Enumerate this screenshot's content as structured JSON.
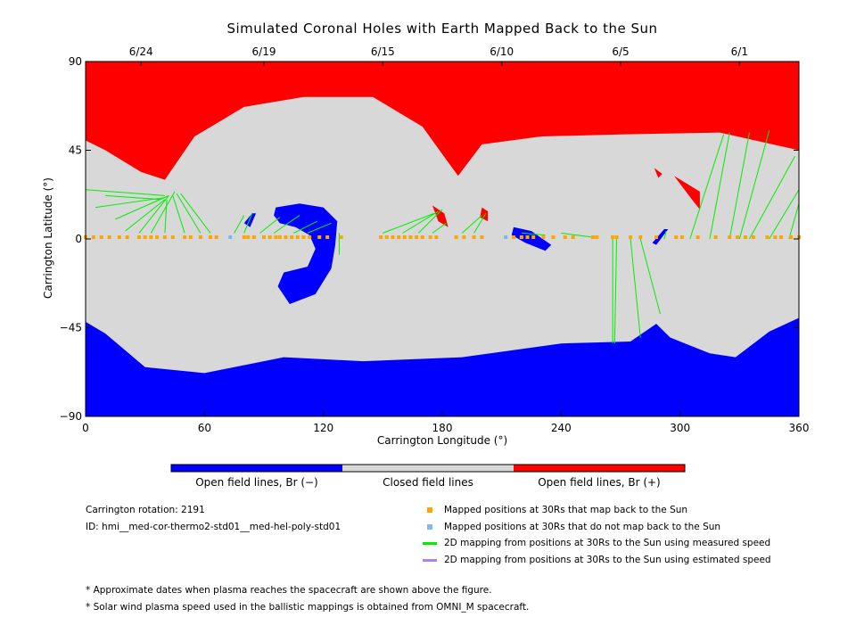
{
  "chart_data": {
    "type": "map",
    "title": "Simulated Coronal Holes with Earth Mapped Back to the Sun",
    "xlabel": "Carrington Longitude (°)",
    "ylabel": "Carrington Latitude (°)",
    "xlim": [
      0,
      360
    ],
    "ylim": [
      -90,
      90
    ],
    "xticks": [
      0,
      60,
      120,
      180,
      240,
      300,
      360
    ],
    "yticks": [
      90,
      45,
      0,
      -45,
      -90
    ],
    "date_ticks": [
      {
        "lon": 28,
        "label": "6/24"
      },
      {
        "lon": 90,
        "label": "6/19"
      },
      {
        "lon": 150,
        "label": "6/15"
      },
      {
        "lon": 210,
        "label": "6/10"
      },
      {
        "lon": 270,
        "label": "6/5"
      },
      {
        "lon": 330,
        "label": "6/1"
      }
    ],
    "colors": {
      "open_negative": "#0000ff",
      "closed": "#d8d8d8",
      "open_positive": "#ff0000",
      "mapped": "#ffa500",
      "not_mapped": "#80b8f0",
      "measured_line": "#00ee00",
      "estimated_line": "#b080f0"
    },
    "regions": [
      {
        "polarity": "positive",
        "points": [
          [
            0,
            90
          ],
          [
            360,
            90
          ],
          [
            360,
            45
          ],
          [
            320,
            54
          ],
          [
            270,
            53
          ],
          [
            230,
            52
          ],
          [
            200,
            48
          ],
          [
            188,
            32
          ],
          [
            180,
            43
          ],
          [
            170,
            57
          ],
          [
            145,
            72
          ],
          [
            110,
            72
          ],
          [
            80,
            67
          ],
          [
            55,
            52
          ],
          [
            40,
            30
          ],
          [
            28,
            34
          ],
          [
            10,
            45
          ],
          [
            0,
            50
          ]
        ]
      },
      {
        "polarity": "negative",
        "points": [
          [
            0,
            -90
          ],
          [
            360,
            -90
          ],
          [
            360,
            -40
          ],
          [
            345,
            -47
          ],
          [
            328,
            -60
          ],
          [
            315,
            -58
          ],
          [
            295,
            -50
          ],
          [
            288,
            -43
          ],
          [
            275,
            -52
          ],
          [
            240,
            -53
          ],
          [
            190,
            -60
          ],
          [
            140,
            -62
          ],
          [
            100,
            -60
          ],
          [
            60,
            -68
          ],
          [
            30,
            -65
          ],
          [
            10,
            -48
          ],
          [
            0,
            -42
          ]
        ]
      },
      {
        "polarity": "negative",
        "points": [
          [
            96,
            16
          ],
          [
            108,
            18
          ],
          [
            120,
            16
          ],
          [
            127,
            9
          ],
          [
            126,
            -3
          ],
          [
            124,
            -15
          ],
          [
            116,
            -28
          ],
          [
            103,
            -33
          ],
          [
            97,
            -24
          ],
          [
            100,
            -17
          ],
          [
            112,
            -14
          ],
          [
            116,
            -5
          ],
          [
            113,
            2
          ],
          [
            106,
            6
          ],
          [
            98,
            8
          ],
          [
            95,
            12
          ]
        ]
      },
      {
        "polarity": "negative",
        "points": [
          [
            80,
            8
          ],
          [
            84,
            13
          ],
          [
            86,
            13
          ],
          [
            83,
            6
          ]
        ]
      },
      {
        "polarity": "negative",
        "points": [
          [
            216,
            6
          ],
          [
            225,
            4
          ],
          [
            235,
            -3
          ],
          [
            232,
            -6
          ],
          [
            222,
            -2
          ],
          [
            215,
            2
          ]
        ]
      },
      {
        "polarity": "negative",
        "points": [
          [
            288,
            -3
          ],
          [
            294,
            5
          ],
          [
            292,
            5
          ],
          [
            286,
            -2
          ]
        ]
      },
      {
        "polarity": "positive",
        "points": [
          [
            175,
            17
          ],
          [
            181,
            13
          ],
          [
            183,
            6
          ],
          [
            178,
            9
          ]
        ]
      },
      {
        "polarity": "positive",
        "points": [
          [
            200,
            16
          ],
          [
            203,
            14
          ],
          [
            203,
            9
          ],
          [
            199,
            11
          ]
        ]
      },
      {
        "polarity": "positive",
        "points": [
          [
            287,
            36
          ],
          [
            291,
            33
          ],
          [
            289,
            31
          ]
        ]
      },
      {
        "polarity": "positive",
        "points": [
          [
            297,
            32
          ],
          [
            310,
            24
          ],
          [
            310,
            15
          ],
          [
            306,
            20
          ]
        ]
      }
    ],
    "mapping_lines": [
      [
        [
          0,
          25
        ],
        [
          40,
          22
        ]
      ],
      [
        [
          5,
          16
        ],
        [
          40,
          21
        ]
      ],
      [
        [
          10,
          22
        ],
        [
          38,
          20
        ]
      ],
      [
        [
          15,
          10
        ],
        [
          42,
          22
        ]
      ],
      [
        [
          20,
          4
        ],
        [
          40,
          20
        ]
      ],
      [
        [
          27,
          3
        ],
        [
          42,
          22
        ]
      ],
      [
        [
          33,
          3
        ],
        [
          45,
          24
        ]
      ],
      [
        [
          40,
          3
        ],
        [
          41,
          20
        ]
      ],
      [
        [
          50,
          3
        ],
        [
          44,
          22
        ]
      ],
      [
        [
          58,
          3
        ],
        [
          46,
          23
        ]
      ],
      [
        [
          63,
          3
        ],
        [
          48,
          23
        ]
      ],
      [
        [
          75,
          3
        ],
        [
          80,
          12
        ]
      ],
      [
        [
          80,
          3
        ],
        [
          84,
          13
        ]
      ],
      [
        [
          88,
          3
        ],
        [
          98,
          11
        ]
      ],
      [
        [
          95,
          3
        ],
        [
          108,
          12
        ]
      ],
      [
        [
          105,
          3
        ],
        [
          117,
          9
        ]
      ],
      [
        [
          112,
          3
        ],
        [
          124,
          8
        ]
      ],
      [
        [
          128,
          3
        ],
        [
          128,
          -8
        ]
      ],
      [
        [
          150,
          3
        ],
        [
          176,
          13
        ]
      ],
      [
        [
          160,
          3
        ],
        [
          178,
          14
        ]
      ],
      [
        [
          168,
          3
        ],
        [
          180,
          15
        ]
      ],
      [
        [
          175,
          3
        ],
        [
          182,
          8
        ]
      ],
      [
        [
          190,
          3
        ],
        [
          200,
          12
        ]
      ],
      [
        [
          196,
          3
        ],
        [
          202,
          13
        ]
      ],
      [
        [
          220,
          3
        ],
        [
          232,
          2
        ]
      ],
      [
        [
          240,
          3
        ],
        [
          255,
          1
        ]
      ],
      [
        [
          266,
          0
        ],
        [
          266,
          -53
        ]
      ],
      [
        [
          268,
          0
        ],
        [
          267,
          -53
        ]
      ],
      [
        [
          275,
          0
        ],
        [
          280,
          -50
        ]
      ],
      [
        [
          280,
          0
        ],
        [
          290,
          -38
        ]
      ],
      [
        [
          292,
          0
        ],
        [
          293,
          4
        ]
      ],
      [
        [
          305,
          0
        ],
        [
          322,
          53
        ]
      ],
      [
        [
          315,
          0
        ],
        [
          325,
          54
        ]
      ],
      [
        [
          325,
          0
        ],
        [
          335,
          54
        ]
      ],
      [
        [
          330,
          0
        ],
        [
          345,
          55
        ]
      ],
      [
        [
          335,
          0
        ],
        [
          358,
          42
        ]
      ],
      [
        [
          345,
          0
        ],
        [
          360,
          25
        ]
      ],
      [
        [
          355,
          0
        ],
        [
          360,
          18
        ]
      ]
    ],
    "mapped_points": [
      0,
      4,
      8,
      12,
      17,
      21,
      27,
      30,
      33,
      36,
      40,
      44,
      50,
      53,
      58,
      63,
      66,
      80,
      82,
      85,
      90,
      93,
      96,
      98,
      101,
      104,
      107,
      110,
      113,
      118,
      122,
      129,
      149,
      152,
      155,
      158,
      161,
      164,
      167,
      170,
      174,
      177,
      187,
      191,
      196,
      200,
      216,
      220,
      223,
      226,
      231,
      236,
      242,
      246,
      256,
      258,
      266,
      268,
      275,
      280,
      288,
      298,
      301,
      309,
      318,
      325,
      329,
      333,
      337,
      344,
      348,
      351,
      356,
      360
    ],
    "not_mapped_points": [
      73,
      212
    ],
    "colorbar": [
      {
        "label": "Open field lines, Br (−)",
        "color": "#0000ff"
      },
      {
        "label": "Closed field lines",
        "color": "#d8d8d8"
      },
      {
        "label": "Open field lines, Br (+)",
        "color": "#ff0000"
      }
    ]
  },
  "info": {
    "rotation": "Carrington rotation: 2191",
    "id": "ID: hmi__med-cor-thermo2-std01__med-hel-poly-std01"
  },
  "legend": [
    {
      "label": "Mapped positions at 30Rs that map back to the Sun",
      "kind": "square",
      "color": "#ffa500"
    },
    {
      "label": "Mapped positions at 30Rs that do not map back to the Sun",
      "kind": "square",
      "color": "#80b8f0"
    },
    {
      "label": "2D mapping from positions at 30Rs to the Sun using measured speed",
      "kind": "line",
      "color": "#00ee00"
    },
    {
      "label": "2D mapping from positions at 30Rs to the Sun using estimated speed",
      "kind": "line",
      "color": "#b080f0"
    }
  ],
  "notes": [
    "* Approximate dates when plasma reaches the spacecraft are shown above the figure.",
    "* Solar wind plasma speed used in the ballistic mappings is obtained from OMNI_M spacecraft."
  ]
}
